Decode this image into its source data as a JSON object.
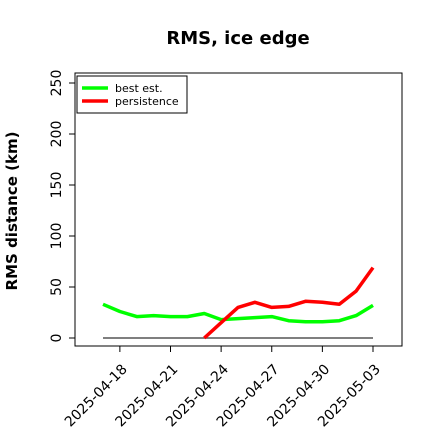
{
  "chart_data": {
    "type": "line",
    "title": "RMS, ice edge",
    "xlabel": "",
    "ylabel": "RMS distance (km)",
    "ylim": [
      0,
      250
    ],
    "yticks": [
      0,
      50,
      100,
      150,
      200,
      250
    ],
    "x": [
      "2025-04-17",
      "2025-04-18",
      "2025-04-19",
      "2025-04-20",
      "2025-04-21",
      "2025-04-22",
      "2025-04-23",
      "2025-04-24",
      "2025-04-25",
      "2025-04-26",
      "2025-04-27",
      "2025-04-28",
      "2025-04-29",
      "2025-04-30",
      "2025-05-01",
      "2025-05-02",
      "2025-05-03"
    ],
    "xtick_labels": [
      "2025-04-18",
      "2025-04-21",
      "2025-04-24",
      "2025-04-27",
      "2025-04-30",
      "2025-05-03"
    ],
    "legend_position": "top-left",
    "grid": false,
    "series": [
      {
        "name": "best est.",
        "color": "#00ff00",
        "values": [
          33,
          26,
          21,
          22,
          21,
          21,
          24,
          18,
          19,
          20,
          21,
          17,
          16,
          16,
          17,
          22,
          32
        ]
      },
      {
        "name": "persistence",
        "color": "#ff0000",
        "values": [
          null,
          null,
          null,
          null,
          null,
          null,
          0,
          15,
          30,
          35,
          30,
          31,
          36,
          35,
          33,
          46,
          69
        ]
      }
    ],
    "reference_line": {
      "value": 0,
      "color": "#555555"
    }
  }
}
